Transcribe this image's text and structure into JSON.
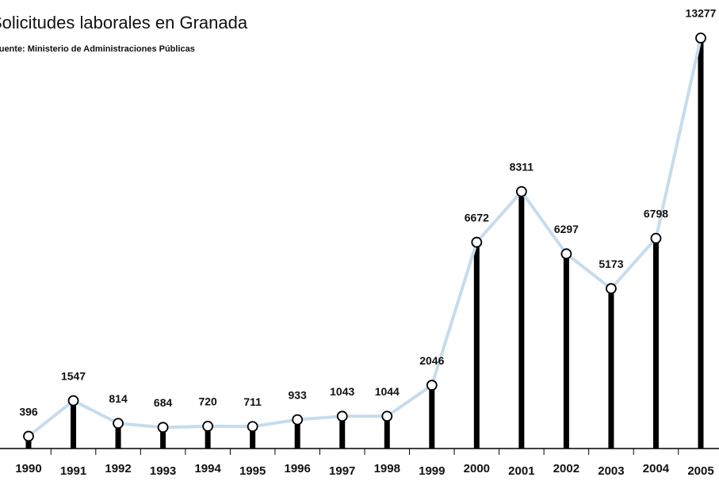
{
  "chart_data": {
    "type": "line",
    "title": "Solicitudes laborales en Granada",
    "subtitle": "Fuente: Ministerio de Administraciones Públicas",
    "categories": [
      "1990",
      "1991",
      "1992",
      "1993",
      "1994",
      "1995",
      "1996",
      "1997",
      "1998",
      "1999",
      "2000",
      "2001",
      "2002",
      "2003",
      "2004",
      "2005"
    ],
    "values": [
      396,
      1547,
      814,
      684,
      720,
      711,
      933,
      1043,
      1044,
      2046,
      6672,
      8311,
      6297,
      5173,
      6798,
      13277
    ],
    "line_color": "#c6dced",
    "stem_color": "#000000"
  }
}
